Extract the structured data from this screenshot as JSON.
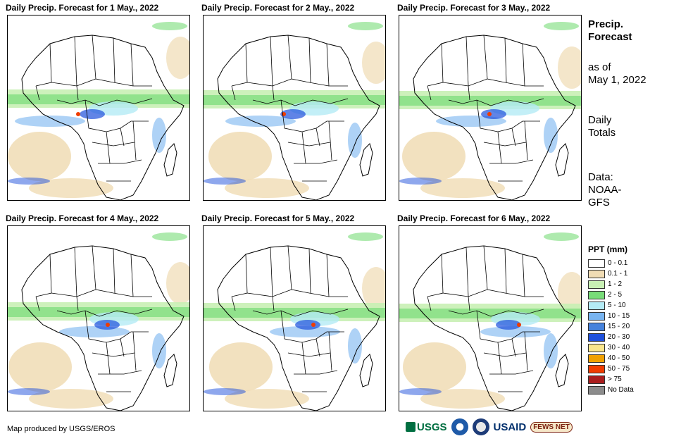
{
  "panels": [
    {
      "title": "Daily Precip. Forecast for 1 May., 2022"
    },
    {
      "title": "Daily Precip. Forecast for 2 May., 2022"
    },
    {
      "title": "Daily Precip. Forecast for 3 May., 2022"
    },
    {
      "title": "Daily Precip. Forecast for 4 May., 2022"
    },
    {
      "title": "Daily Precip. Forecast for 5 May., 2022"
    },
    {
      "title": "Daily Precip. Forecast for 6 May., 2022"
    }
  ],
  "sidebar": {
    "title_line1": "Precip.",
    "title_line2": "Forecast",
    "asof_line1": "as of",
    "asof_line2": "May 1, 2022",
    "daily_line1": "Daily",
    "daily_line2": "Totals",
    "data_line1": "Data:",
    "data_line2": "NOAA-",
    "data_line3": "GFS"
  },
  "legend": {
    "title": "PPT (mm)",
    "items": [
      {
        "label": "0 - 0.1",
        "color": "#ffffff"
      },
      {
        "label": "0.1 - 1",
        "color": "#f0dcb4"
      },
      {
        "label": "1 - 2",
        "color": "#c8f0b4"
      },
      {
        "label": "2 - 5",
        "color": "#78dc78"
      },
      {
        "label": "5 - 10",
        "color": "#b4ebf5"
      },
      {
        "label": "10 - 15",
        "color": "#78b4f0"
      },
      {
        "label": "15 - 20",
        "color": "#4682dc"
      },
      {
        "label": "20 - 30",
        "color": "#1e50dc"
      },
      {
        "label": "30 - 40",
        "color": "#fae68c"
      },
      {
        "label": "40 - 50",
        "color": "#f0a000"
      },
      {
        "label": "50 - 75",
        "color": "#f03c00"
      },
      {
        "label": "> 75",
        "color": "#aa1e1e"
      },
      {
        "label": "No Data",
        "color": "#8c8c8c"
      }
    ]
  },
  "footer": {
    "credit": "Map produced by USGS/EROS",
    "logos": {
      "usgs": "USGS",
      "usaid": "USAID",
      "fews": "FEWS NET"
    }
  },
  "colors": {
    "sand": "#f0dcb4",
    "lightgreen": "#c8f0b4",
    "green": "#78dc78",
    "cyan": "#b4ebf5",
    "blue": "#78b4f0",
    "darkblue": "#1e50dc",
    "red": "#f03c00"
  }
}
